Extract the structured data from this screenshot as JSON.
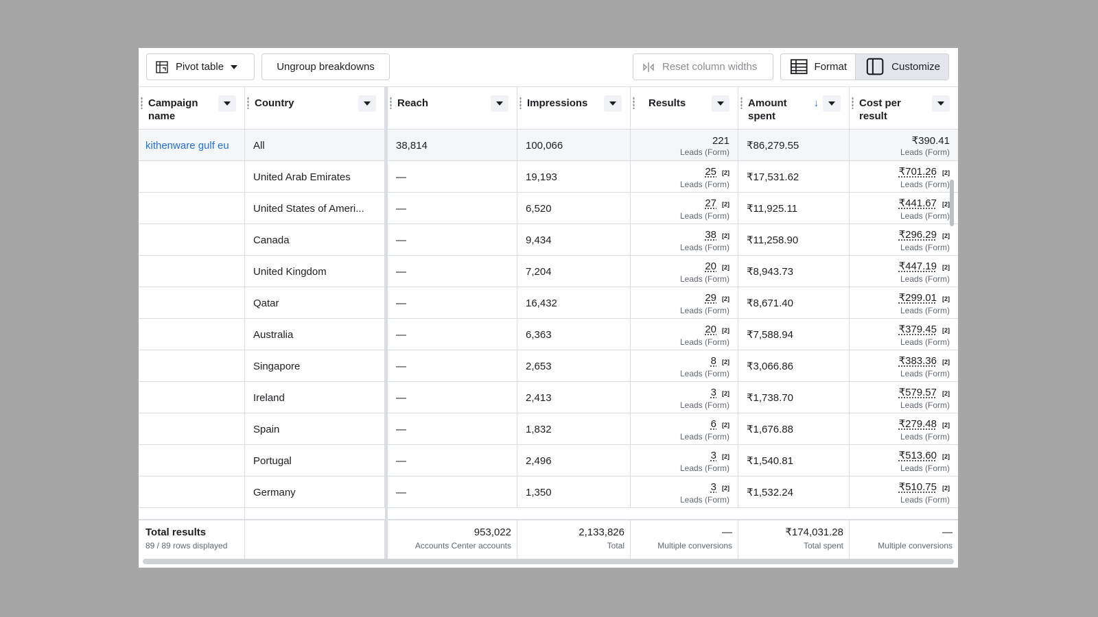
{
  "toolbar": {
    "pivot_label": "Pivot table",
    "ungroup_label": "Ungroup breakdowns",
    "reset_label": "Reset column widths",
    "format_label": "Format",
    "customize_label": "Customize"
  },
  "columns": {
    "campaign": "Campaign name",
    "country": "Country",
    "reach": "Reach",
    "impressions": "Impressions",
    "results": "Results",
    "amount": "Amount spent",
    "cpr": "Cost per result",
    "sort_arrow": "↓"
  },
  "campaign_name": "kithenware gulf eu",
  "result_unit": "Leads (Form)",
  "ref_mark": "[2]",
  "rows": [
    {
      "country": "All",
      "reach": "38,814",
      "impressions": "100,066",
      "results": "221",
      "amount": "₹86,279.55",
      "cpr": "₹390.41"
    },
    {
      "country": "United Arab Emirates",
      "reach": "—",
      "impressions": "19,193",
      "results": "25",
      "amount": "₹17,531.62",
      "cpr": "₹701.26"
    },
    {
      "country": "United States of Ameri...",
      "reach": "—",
      "impressions": "6,520",
      "results": "27",
      "amount": "₹11,925.11",
      "cpr": "₹441.67"
    },
    {
      "country": "Canada",
      "reach": "—",
      "impressions": "9,434",
      "results": "38",
      "amount": "₹11,258.90",
      "cpr": "₹296.29"
    },
    {
      "country": "United Kingdom",
      "reach": "—",
      "impressions": "7,204",
      "results": "20",
      "amount": "₹8,943.73",
      "cpr": "₹447.19"
    },
    {
      "country": "Qatar",
      "reach": "—",
      "impressions": "16,432",
      "results": "29",
      "amount": "₹8,671.40",
      "cpr": "₹299.01"
    },
    {
      "country": "Australia",
      "reach": "—",
      "impressions": "6,363",
      "results": "20",
      "amount": "₹7,588.94",
      "cpr": "₹379.45"
    },
    {
      "country": "Singapore",
      "reach": "—",
      "impressions": "2,653",
      "results": "8",
      "amount": "₹3,066.86",
      "cpr": "₹383.36"
    },
    {
      "country": "Ireland",
      "reach": "—",
      "impressions": "2,413",
      "results": "3",
      "amount": "₹1,738.70",
      "cpr": "₹579.57"
    },
    {
      "country": "Spain",
      "reach": "—",
      "impressions": "1,832",
      "results": "6",
      "amount": "₹1,676.88",
      "cpr": "₹279.48"
    },
    {
      "country": "Portugal",
      "reach": "—",
      "impressions": "2,496",
      "results": "3",
      "amount": "₹1,540.81",
      "cpr": "₹513.60"
    },
    {
      "country": "Germany",
      "reach": "—",
      "impressions": "1,350",
      "results": "3",
      "amount": "₹1,532.24",
      "cpr": "₹510.75"
    }
  ],
  "totals": {
    "title": "Total results",
    "rows_displayed": "89 / 89 rows displayed",
    "reach": "953,022",
    "reach_label": "Accounts Center accounts",
    "impressions": "2,133,826",
    "impressions_label": "Total",
    "results": "—",
    "results_label": "Multiple conversions",
    "amount": "₹174,031.28",
    "amount_label": "Total spent",
    "cpr": "—",
    "cpr_label": "Multiple conversions"
  }
}
